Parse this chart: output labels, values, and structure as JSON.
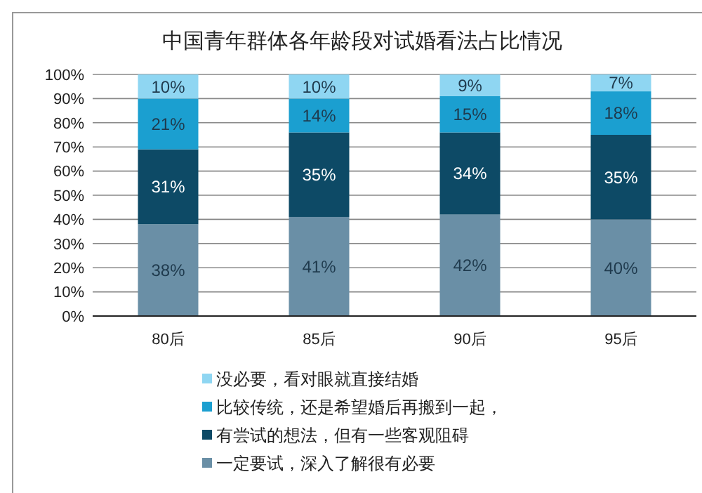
{
  "chart_data": {
    "type": "bar",
    "stacked": true,
    "title": "中国青年群体各年龄段对试婚看法占比情况",
    "categories": [
      "80后",
      "85后",
      "90后",
      "95后"
    ],
    "series": [
      {
        "name": "一定要试，深入了解很有必要",
        "color": "#6a8fa6",
        "values": [
          38,
          41,
          42,
          40
        ],
        "value_labels": [
          "38%",
          "41%",
          "42%",
          "40%"
        ]
      },
      {
        "name": "有尝试的想法，但有一些客观阻碍",
        "color": "#0d4a66",
        "values": [
          31,
          35,
          34,
          35
        ],
        "value_labels": [
          "31%",
          "35%",
          "34%",
          "35%"
        ]
      },
      {
        "name": "比较传统，还是希望婚后再搬到一起，",
        "color": "#1b9fd0",
        "values": [
          21,
          14,
          15,
          18
        ],
        "value_labels": [
          "21%",
          "14%",
          "15%",
          "18%"
        ]
      },
      {
        "name": "没必要，看对眼就直接结婚",
        "color": "#8fd6f2",
        "values": [
          10,
          10,
          9,
          7
        ],
        "value_labels": [
          "10%",
          "10%",
          "9%",
          "7%"
        ]
      }
    ],
    "ylim": [
      0,
      100
    ],
    "yticks": [
      {
        "value": 0,
        "label": "0%"
      },
      {
        "value": 10,
        "label": "10%"
      },
      {
        "value": 20,
        "label": "20%"
      },
      {
        "value": 30,
        "label": "30%"
      },
      {
        "value": 40,
        "label": "40%"
      },
      {
        "value": 50,
        "label": "50%"
      },
      {
        "value": 60,
        "label": "60%"
      },
      {
        "value": 70,
        "label": "70%"
      },
      {
        "value": 80,
        "label": "80%"
      },
      {
        "value": 90,
        "label": "90%"
      },
      {
        "value": 100,
        "label": "100%"
      }
    ],
    "grid": "y",
    "legend": "bottom"
  }
}
